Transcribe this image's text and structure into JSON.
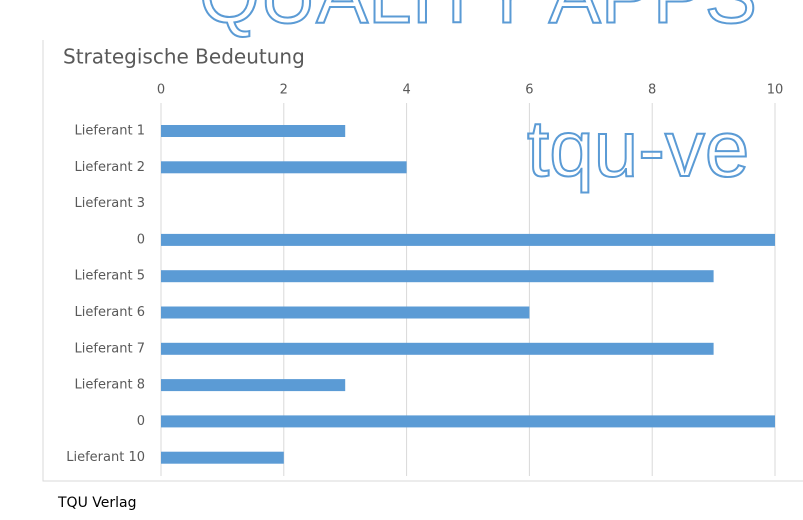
{
  "chart_data": {
    "type": "bar",
    "orientation": "horizontal",
    "title": "Strategische Bedeutung",
    "categories": [
      "Lieferant 1",
      "Lieferant 2",
      "Lieferant 3",
      "0",
      "Lieferant 5",
      "Lieferant 6",
      "Lieferant 7",
      "Lieferant 8",
      "0",
      "Lieferant 10"
    ],
    "values": [
      3,
      4,
      0,
      10,
      9,
      6,
      9,
      3,
      10,
      2
    ],
    "color": "#5b9bd5",
    "xlim": [
      0,
      10
    ],
    "xticks": [
      0,
      2,
      4,
      6,
      8,
      10
    ],
    "grid": true
  },
  "watermark": [
    "QUALITY APPS",
    "tqu-ve"
  ],
  "footer": "TQU Verlag"
}
